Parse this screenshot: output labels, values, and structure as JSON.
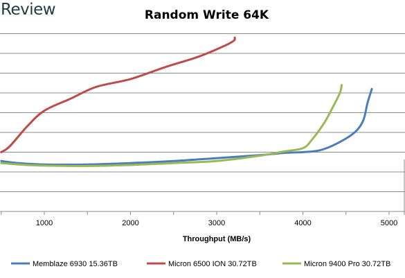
{
  "brand": "Review",
  "chart_data": {
    "type": "line",
    "title": "Random Write 64K",
    "xlabel": "Throughput (MB/s)",
    "ylabel": "",
    "xlim": [
      500,
      5100
    ],
    "x_ticks": [
      1000,
      2000,
      3000,
      4000,
      5000
    ],
    "ylim": [
      0,
      10
    ],
    "y_gridlines": [
      1,
      2,
      3,
      4,
      5,
      6,
      7,
      8,
      9
    ],
    "grid": true,
    "legend_position": "bottom",
    "series": [
      {
        "name": "Memblaze 6930 15.36TB",
        "color": "#4a7ebb",
        "points": [
          [
            500,
            2.55
          ],
          [
            700,
            2.45
          ],
          [
            1000,
            2.38
          ],
          [
            1500,
            2.38
          ],
          [
            2000,
            2.45
          ],
          [
            2500,
            2.55
          ],
          [
            3000,
            2.7
          ],
          [
            3500,
            2.85
          ],
          [
            3800,
            2.97
          ],
          [
            4000,
            3.0
          ],
          [
            4200,
            3.1
          ],
          [
            4400,
            3.45
          ],
          [
            4600,
            4.0
          ],
          [
            4700,
            4.6
          ],
          [
            4750,
            5.5
          ],
          [
            4800,
            6.2
          ]
        ]
      },
      {
        "name": "Micron 6500 ION 30.72TB",
        "color": "#be4b48",
        "points": [
          [
            500,
            3.0
          ],
          [
            600,
            3.3
          ],
          [
            800,
            4.3
          ],
          [
            1000,
            5.1
          ],
          [
            1300,
            5.7
          ],
          [
            1600,
            6.3
          ],
          [
            2000,
            6.7
          ],
          [
            2400,
            7.3
          ],
          [
            2800,
            7.85
          ],
          [
            3100,
            8.4
          ],
          [
            3200,
            8.65
          ],
          [
            3210,
            8.8
          ]
        ]
      },
      {
        "name": "Micron 9400 Pro 30.72TB",
        "color": "#98b954",
        "points": [
          [
            500,
            2.45
          ],
          [
            800,
            2.35
          ],
          [
            1000,
            2.32
          ],
          [
            1500,
            2.3
          ],
          [
            2000,
            2.35
          ],
          [
            2500,
            2.45
          ],
          [
            3000,
            2.55
          ],
          [
            3500,
            2.82
          ],
          [
            3800,
            3.05
          ],
          [
            4000,
            3.2
          ],
          [
            4100,
            3.6
          ],
          [
            4250,
            4.5
          ],
          [
            4350,
            5.3
          ],
          [
            4430,
            6.0
          ],
          [
            4450,
            6.4
          ]
        ]
      }
    ]
  }
}
